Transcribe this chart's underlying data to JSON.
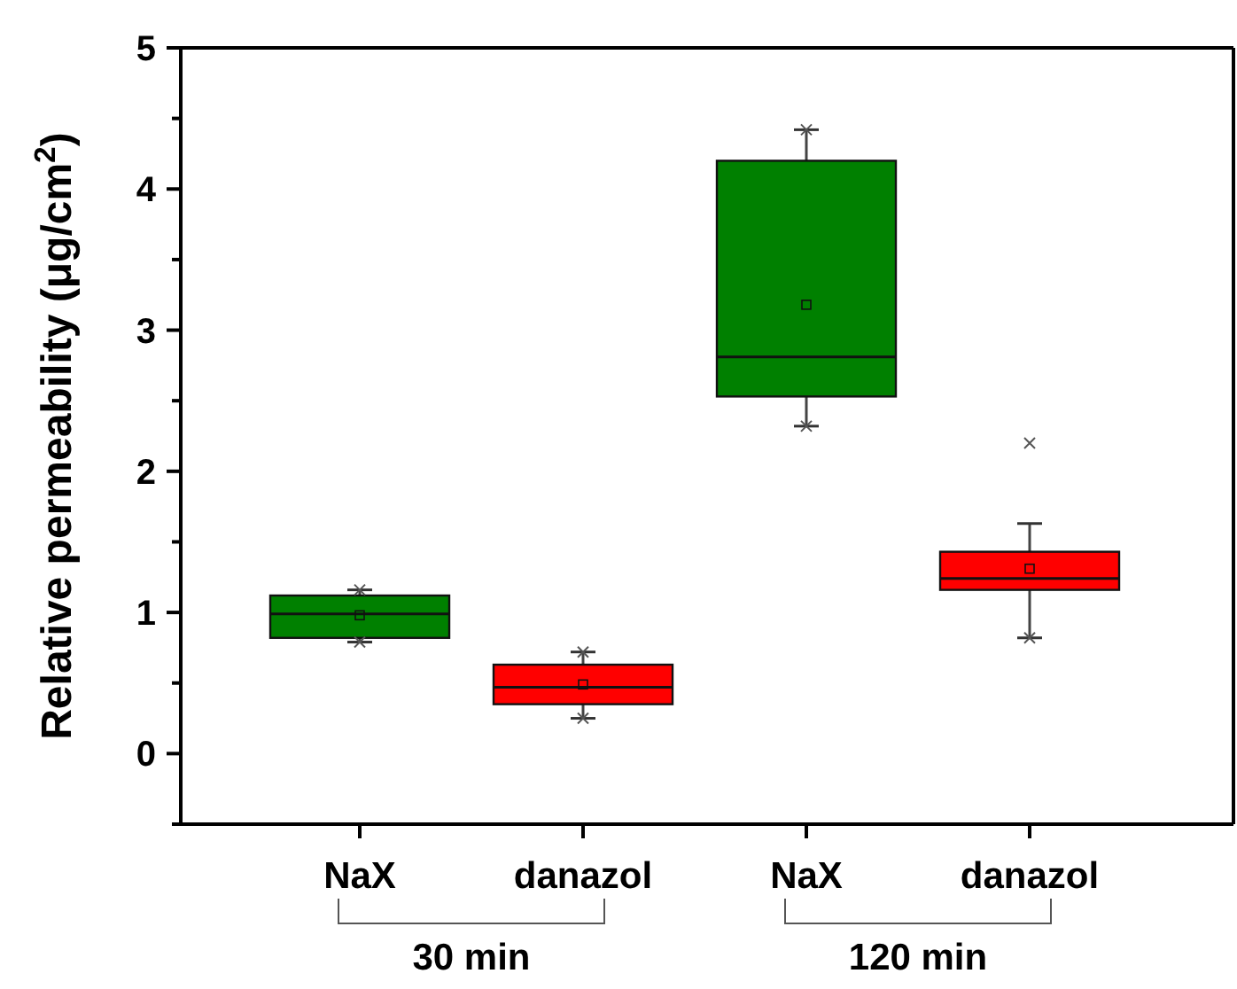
{
  "chart_data": {
    "type": "box",
    "ylabel": "Relative permeability (μg/cm$^{2}$)",
    "categories": [
      "NaX",
      "danazol",
      "NaX",
      "danazol"
    ],
    "colors": [
      "#008000",
      "#ff0000",
      "#008000",
      "#ff0000"
    ],
    "boxes": [
      {
        "low": 0.79,
        "q1": 0.82,
        "median": 0.99,
        "q3": 1.12,
        "high": 1.16,
        "mean": 0.98
      },
      {
        "low": 0.25,
        "q1": 0.35,
        "median": 0.47,
        "q3": 0.63,
        "high": 0.72,
        "mean": 0.49
      },
      {
        "low": 2.32,
        "q1": 2.53,
        "median": 2.81,
        "q3": 4.2,
        "high": 4.42,
        "mean": 3.18
      },
      {
        "low": 0.82,
        "q1": 1.16,
        "median": 1.24,
        "q3": 1.43,
        "high": 1.63,
        "mean": 1.31,
        "outliers": [
          2.2
        ]
      }
    ],
    "ylim": [
      -0.5,
      5
    ],
    "yticks": [
      {
        "value": -0.5,
        "label": null
      },
      0,
      {
        "value": 0.5,
        "label": null
      },
      1,
      {
        "value": 1.5,
        "label": null
      },
      2,
      {
        "value": 2.5,
        "label": null
      },
      3,
      {
        "value": 3.5,
        "label": null
      },
      4,
      {
        "value": 4.5,
        "label": null
      },
      5
    ],
    "annotations": [
      "30 min",
      "120 min"
    ]
  }
}
